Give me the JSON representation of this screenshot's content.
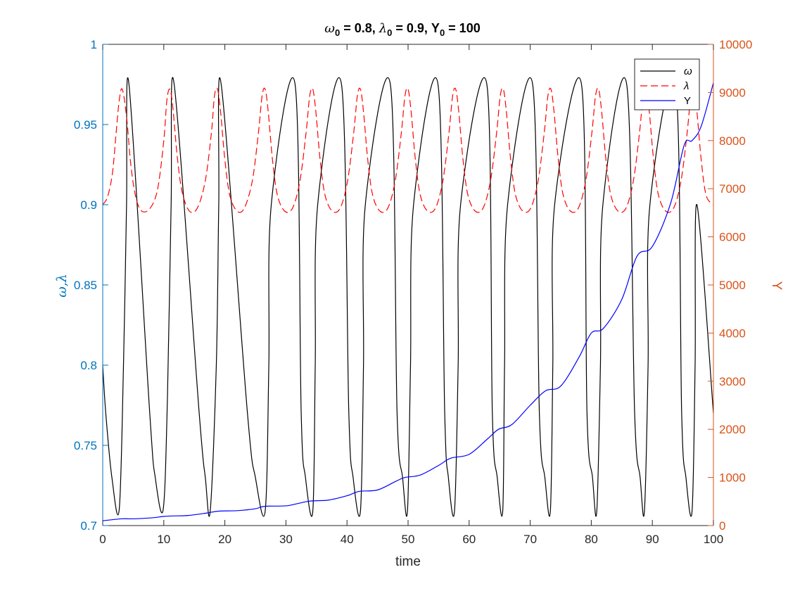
{
  "chart_data": {
    "type": "line",
    "title": {
      "omega_symbol": "ω",
      "omega_sub": "0",
      "omega_value": " = 0.8, ",
      "lambda_symbol": "λ",
      "lambda_sub": "0",
      "lambda_value": " = 0.9, Y",
      "y_sub": "0",
      "y_value": " = 100"
    },
    "xlabel": "time",
    "ylabel_left": "ω,λ",
    "ylabel_right": "Y",
    "xlim": [
      0,
      100
    ],
    "ylim_left": [
      0.7,
      1.0
    ],
    "ylim_right": [
      0,
      10000
    ],
    "x_ticks": [
      "0",
      "10",
      "20",
      "30",
      "40",
      "50",
      "60",
      "70",
      "80",
      "90",
      "100"
    ],
    "y_left_ticks": [
      "0.7",
      "0.75",
      "0.8",
      "0.85",
      "0.9",
      "0.95",
      "1"
    ],
    "y_right_ticks": [
      "0",
      "1000",
      "2000",
      "3000",
      "4000",
      "5000",
      "6000",
      "7000",
      "8000",
      "9000",
      "10000"
    ],
    "legend_position": "top-right",
    "colors": {
      "omega": "#000000",
      "lambda": "#FF0000",
      "Y": "#0000FF",
      "left_axis": "#0072BD",
      "right_axis": "#D95319"
    },
    "series": [
      {
        "name": "ω",
        "axis": "left",
        "style": "solid",
        "x": [
          0,
          0.5,
          1.5,
          2.7,
          3.4,
          3.9,
          4.3,
          7.7,
          8.6,
          9.9,
          10.6,
          11.2,
          11.7,
          15.8,
          16.8,
          17.6,
          18.6,
          19.0,
          19.4,
          23.7,
          25.0,
          26.6,
          27.2,
          27.6,
          31.5,
          32.5,
          33.2,
          34.4,
          34.8,
          35.2,
          39.1,
          40.3,
          41.0,
          42.2,
          42.7,
          43.0,
          47.1,
          48.2,
          49.1,
          49.9,
          50.4,
          50.9,
          54.9,
          56.0,
          56.6,
          57.6,
          58.2,
          58.6,
          62.9,
          63.8,
          64.6,
          65.5,
          65.8,
          66.3,
          70.4,
          71.5,
          72.4,
          73.3,
          73.7,
          74.0,
          78.4,
          79.3,
          80.2,
          80.9,
          81.5,
          81.9,
          85.8,
          87.1,
          88.0,
          88.7,
          89.3,
          89.6,
          93.8,
          94.8,
          95.5,
          96.5,
          97.0,
          97.3,
          100
        ],
        "y": [
          0.8,
          0.77,
          0.73,
          0.71,
          0.8,
          0.9,
          0.975,
          0.77,
          0.73,
          0.71,
          0.78,
          0.9,
          0.975,
          0.77,
          0.73,
          0.709,
          0.8,
          0.9,
          0.975,
          0.77,
          0.73,
          0.709,
          0.8,
          0.9,
          0.975,
          0.77,
          0.73,
          0.709,
          0.8,
          0.9,
          0.975,
          0.77,
          0.73,
          0.709,
          0.8,
          0.9,
          0.975,
          0.77,
          0.73,
          0.709,
          0.8,
          0.9,
          0.975,
          0.77,
          0.73,
          0.709,
          0.8,
          0.9,
          0.975,
          0.77,
          0.73,
          0.709,
          0.8,
          0.9,
          0.975,
          0.77,
          0.73,
          0.709,
          0.8,
          0.9,
          0.975,
          0.77,
          0.73,
          0.709,
          0.8,
          0.9,
          0.975,
          0.77,
          0.73,
          0.709,
          0.8,
          0.9,
          0.975,
          0.77,
          0.73,
          0.709,
          0.8,
          0.9,
          0.77
        ]
      },
      {
        "name": "λ",
        "axis": "left",
        "style": "dashed",
        "x": [
          0,
          0.8,
          1.6,
          2.2,
          2.7,
          3.2,
          3.9,
          4.6,
          5.4,
          6.4,
          7.8,
          9.0,
          10.0,
          10.5,
          11.0,
          11.5,
          12.2,
          13.0,
          14.2,
          15.5,
          16.8,
          17.8,
          18.3,
          18.8,
          19.3,
          20.0,
          20.8,
          22.0,
          23.2,
          24.5,
          25.5,
          26.1,
          26.6,
          27.1,
          27.8,
          28.6,
          29.8,
          31.1,
          32.3,
          33.3,
          33.9,
          34.4,
          34.9,
          35.6,
          36.4,
          37.6,
          38.9,
          40.1,
          41.1,
          41.7,
          42.2,
          42.7,
          43.4,
          44.2,
          45.4,
          46.7,
          47.9,
          48.9,
          49.5,
          50.0,
          50.5,
          51.2,
          52.0,
          53.2,
          54.5,
          55.7,
          56.7,
          57.3,
          57.8,
          58.3,
          59.0,
          59.8,
          61.0,
          62.3,
          63.5,
          64.5,
          65.1,
          65.6,
          66.1,
          66.8,
          67.6,
          68.8,
          70.1,
          71.3,
          72.3,
          72.9,
          73.4,
          73.9,
          74.6,
          75.4,
          76.6,
          77.9,
          79.1,
          80.1,
          80.7,
          81.2,
          81.7,
          82.4,
          83.2,
          84.4,
          85.7,
          86.9,
          87.9,
          88.5,
          89.0,
          89.5,
          90.2,
          91.0,
          92.2,
          93.5,
          94.7,
          95.7,
          96.3,
          96.8,
          97.3,
          98.0,
          98.8,
          100
        ],
        "y": [
          0.9,
          0.905,
          0.92,
          0.945,
          0.965,
          0.972,
          0.955,
          0.925,
          0.905,
          0.896,
          0.898,
          0.91,
          0.94,
          0.965,
          0.972,
          0.96,
          0.93,
          0.908,
          0.896,
          0.898,
          0.915,
          0.945,
          0.968,
          0.972,
          0.958,
          0.928,
          0.906,
          0.896,
          0.898,
          0.915,
          0.945,
          0.968,
          0.972,
          0.958,
          0.928,
          0.906,
          0.896,
          0.898,
          0.915,
          0.945,
          0.968,
          0.972,
          0.958,
          0.928,
          0.906,
          0.896,
          0.898,
          0.915,
          0.945,
          0.968,
          0.972,
          0.958,
          0.928,
          0.906,
          0.896,
          0.898,
          0.915,
          0.945,
          0.968,
          0.972,
          0.958,
          0.928,
          0.906,
          0.896,
          0.898,
          0.915,
          0.945,
          0.968,
          0.972,
          0.958,
          0.928,
          0.906,
          0.896,
          0.898,
          0.915,
          0.945,
          0.968,
          0.972,
          0.958,
          0.928,
          0.906,
          0.896,
          0.898,
          0.915,
          0.945,
          0.968,
          0.972,
          0.958,
          0.928,
          0.906,
          0.896,
          0.898,
          0.915,
          0.945,
          0.968,
          0.972,
          0.958,
          0.928,
          0.906,
          0.896,
          0.898,
          0.915,
          0.945,
          0.968,
          0.972,
          0.958,
          0.928,
          0.906,
          0.896,
          0.898,
          0.915,
          0.945,
          0.968,
          0.972,
          0.958,
          0.928,
          0.906,
          0.9
        ]
      },
      {
        "name": "Y",
        "axis": "right",
        "style": "solid",
        "x": [
          0,
          3,
          5,
          8,
          10,
          11.5,
          14,
          17,
          19,
          22,
          25,
          26.5,
          30,
          32,
          34,
          37,
          40,
          42,
          45,
          48,
          49.5,
          52,
          55,
          57,
          60,
          63,
          64.8,
          67,
          70,
          72.5,
          75,
          78,
          80,
          82,
          85,
          87.5,
          90,
          93,
          95.2,
          96.5,
          98,
          100
        ],
        "y": [
          100,
          140,
          140,
          160,
          190,
          200,
          210,
          260,
          300,
          310,
          350,
          400,
          410,
          460,
          510,
          530,
          620,
          710,
          740,
          920,
          1000,
          1050,
          1250,
          1400,
          1480,
          1800,
          2000,
          2100,
          2500,
          2800,
          2900,
          3500,
          4000,
          4100,
          4700,
          5600,
          5800,
          6700,
          7900,
          8000,
          8300,
          9200
        ]
      }
    ]
  }
}
